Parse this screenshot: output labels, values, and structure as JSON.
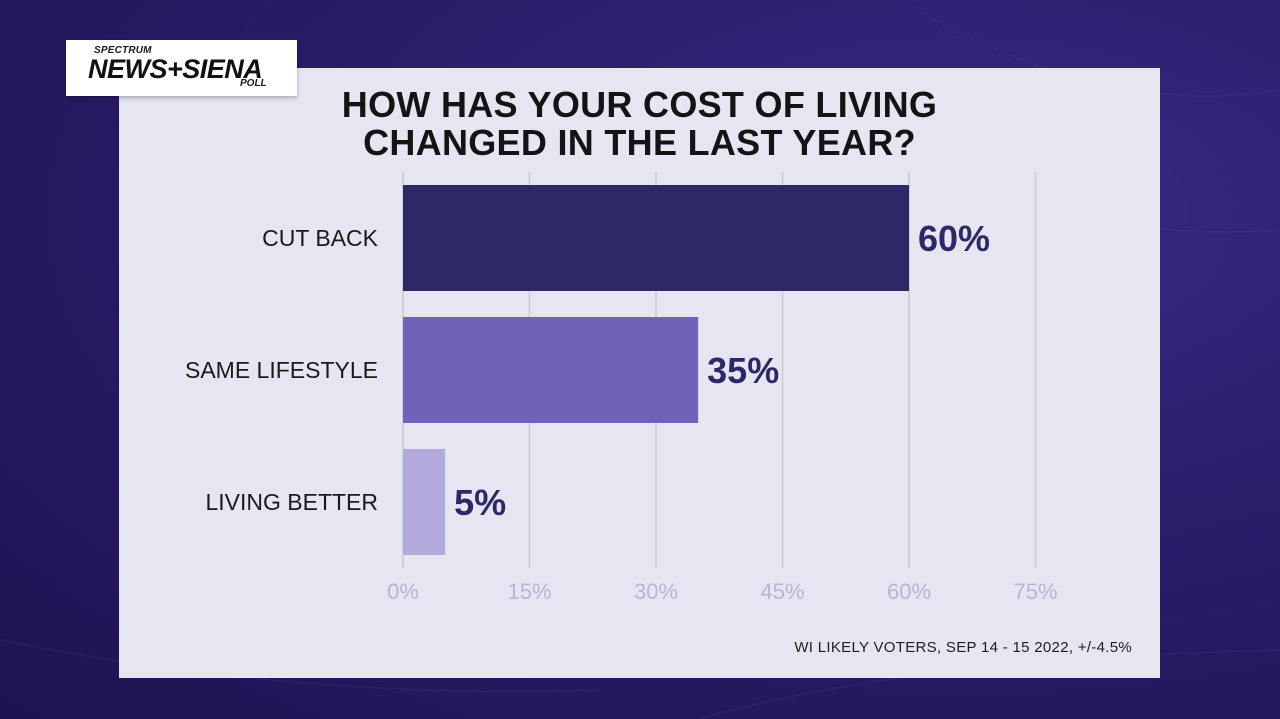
{
  "logo": {
    "line1": "SPECTRUM",
    "line2": "NEWS+SIENA",
    "line3": "POLL"
  },
  "chart_data": {
    "type": "bar",
    "orientation": "horizontal",
    "title_line1": "HOW HAS YOUR COST OF LIVING",
    "title_line2": "CHANGED IN THE LAST YEAR?",
    "categories": [
      "CUT BACK",
      "SAME LIFESTYLE",
      "LIVING BETTER"
    ],
    "values": [
      60,
      35,
      5
    ],
    "value_labels": [
      "60%",
      "35%",
      "5%"
    ],
    "bar_colors": [
      "#2e2866",
      "#6e63b8",
      "#b3a9dc"
    ],
    "xticks": [
      0,
      15,
      30,
      45,
      60,
      75
    ],
    "xtick_labels": [
      "0%",
      "15%",
      "30%",
      "45%",
      "60%",
      "75%"
    ],
    "xlim": [
      0,
      75
    ],
    "grid": true,
    "footnote": "WI LIKELY VOTERS, SEP 14 - 15 2022, +/-4.5%"
  },
  "colors": {
    "background": "#2a1d6a",
    "panel": "#e5e6f1",
    "value_label": "#2e2866",
    "tick_label": "#b7b5d6",
    "gridline": "#c9c9d6"
  }
}
